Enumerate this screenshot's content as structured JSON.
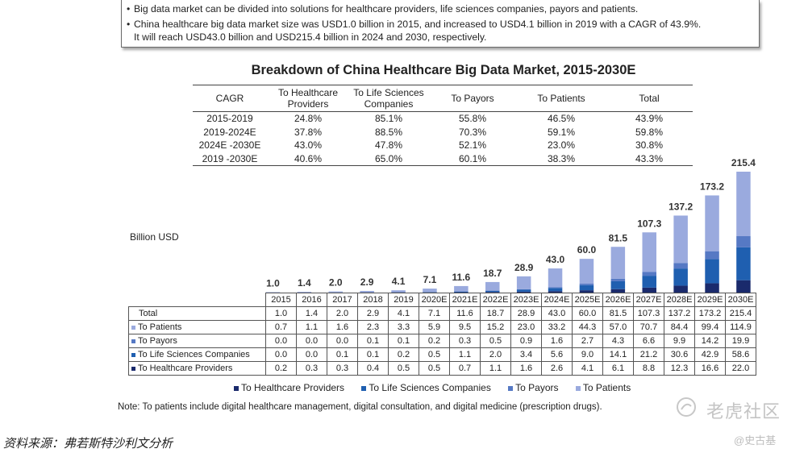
{
  "notes": [
    "Big data market can be divided into solutions for healthcare providers, life sciences companies, payors and patients.",
    "China healthcare big data market size was USD1.0 billion in 2015, and increased to USD4.1 billion in 2019 with a CAGR of 43.9%.",
    "It will reach USD43.0 billion and USD215.4 billion in 2024 and 2030, respectively."
  ],
  "cagr_table": {
    "headers": [
      "CAGR",
      "To Healthcare Providers",
      "To Life Sciences Companies",
      "To Payors",
      "To Patients",
      "Total"
    ],
    "rows": [
      [
        "2015-2019",
        "24.8%",
        "85.1%",
        "55.8%",
        "46.5%",
        "43.9%"
      ],
      [
        "2019-2024E",
        "37.8%",
        "88.5%",
        "70.3%",
        "59.1%",
        "59.8%"
      ],
      [
        "2024E -2030E",
        "43.0%",
        "47.8%",
        "52.1%",
        "23.0%",
        "30.8%"
      ],
      [
        "2019 -2030E",
        "40.6%",
        "65.0%",
        "60.1%",
        "38.3%",
        "43.3%"
      ]
    ]
  },
  "data_table_labels": {
    "total": "Total",
    "patients": "To Patients",
    "payors": "To Payors",
    "life_sciences": "To Life Sciences Companies",
    "providers": "To Healthcare Providers"
  },
  "chart_data": {
    "type": "bar",
    "stacked": true,
    "title": "Breakdown of China Healthcare Big Data Market, 2015-2030E",
    "ylabel": "Billion USD",
    "categories": [
      "2015",
      "2016",
      "2017",
      "2018",
      "2019",
      "2020E",
      "2021E",
      "2022E",
      "2023E",
      "2024E",
      "2025E",
      "2026E",
      "2027E",
      "2028E",
      "2029E",
      "2030E"
    ],
    "totals": [
      1.0,
      1.4,
      2.0,
      2.9,
      4.1,
      7.1,
      11.6,
      18.7,
      28.9,
      43.0,
      60.0,
      81.5,
      107.3,
      137.2,
      173.2,
      215.4
    ],
    "total_labels": [
      "1.0",
      "1.4",
      "2.0",
      "2.9",
      "4.1",
      "7.1",
      "11.6",
      "18.7",
      "28.9",
      "43.0",
      "60.0",
      "81.5",
      "107.3",
      "137.2",
      "173.2",
      "215.4"
    ],
    "series": [
      {
        "name": "To Healthcare Providers",
        "color": "#1a2a6c",
        "values": [
          0.2,
          0.3,
          0.3,
          0.4,
          0.5,
          0.5,
          0.7,
          1.1,
          1.6,
          2.6,
          4.1,
          6.1,
          8.8,
          12.3,
          16.6,
          22.0
        ],
        "labels": [
          "0.2",
          "0.3",
          "0.3",
          "0.4",
          "0.5",
          "0.5",
          "0.7",
          "1.1",
          "1.6",
          "2.6",
          "4.1",
          "6.1",
          "8.8",
          "12.3",
          "16.6",
          "22.0"
        ]
      },
      {
        "name": "To Life Sciences Companies",
        "color": "#1f5fb0",
        "values": [
          0.0,
          0.0,
          0.1,
          0.1,
          0.2,
          0.5,
          1.1,
          2.0,
          3.4,
          5.6,
          9.0,
          14.1,
          21.2,
          30.6,
          42.9,
          58.6
        ],
        "labels": [
          "0.0",
          "0.0",
          "0.1",
          "0.1",
          "0.2",
          "0.5",
          "1.1",
          "2.0",
          "3.4",
          "5.6",
          "9.0",
          "14.1",
          "21.2",
          "30.6",
          "42.9",
          "58.6"
        ]
      },
      {
        "name": "To Payors",
        "color": "#5679c4",
        "values": [
          0.0,
          0.0,
          0.0,
          0.1,
          0.1,
          0.2,
          0.3,
          0.5,
          0.9,
          1.6,
          2.7,
          4.3,
          6.6,
          9.9,
          14.2,
          19.9
        ],
        "labels": [
          "0.0",
          "0.0",
          "0.0",
          "0.1",
          "0.1",
          "0.2",
          "0.3",
          "0.5",
          "0.9",
          "1.6",
          "2.7",
          "4.3",
          "6.6",
          "9.9",
          "14.2",
          "19.9"
        ]
      },
      {
        "name": "To Patients",
        "color": "#9aaade",
        "values": [
          0.7,
          1.1,
          1.6,
          2.3,
          3.3,
          5.9,
          9.5,
          15.2,
          23.0,
          33.2,
          44.3,
          57.0,
          70.7,
          84.4,
          99.4,
          114.9
        ],
        "labels": [
          "0.7",
          "1.1",
          "1.6",
          "2.3",
          "3.3",
          "5.9",
          "9.5",
          "15.2",
          "23.0",
          "33.2",
          "44.3",
          "57.0",
          "70.7",
          "84.4",
          "99.4",
          "114.9"
        ]
      }
    ]
  },
  "legend": [
    {
      "label": "To Healthcare Providers",
      "color": "#1a2a6c"
    },
    {
      "label": "To Life Sciences Companies",
      "color": "#1f5fb0"
    },
    {
      "label": "To Payors",
      "color": "#5679c4"
    },
    {
      "label": "To Patients",
      "color": "#9aaade"
    }
  ],
  "note": "Note: To patients include digital healthcare management, digital consultation, and digital medicine (prescription drugs).",
  "source": "资料来源：弗若斯特沙利文分析",
  "watermark": {
    "main": "老虎社区",
    "user": "@史古基"
  }
}
